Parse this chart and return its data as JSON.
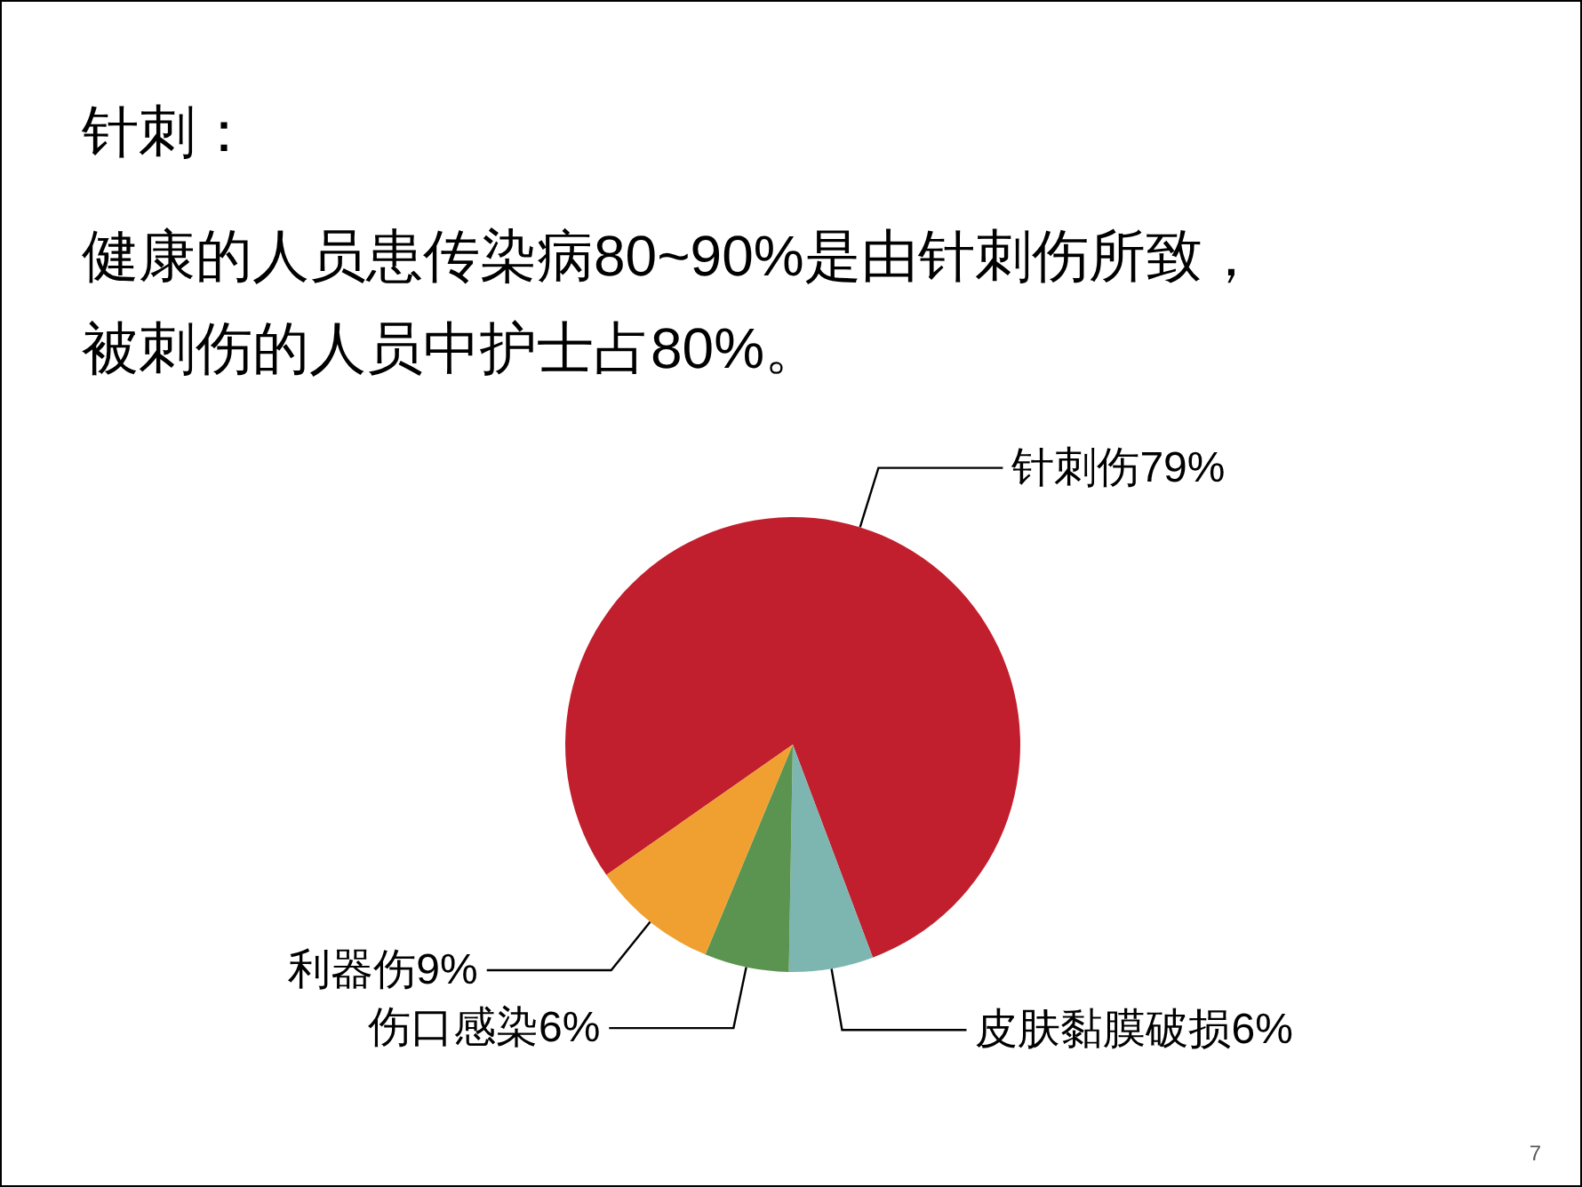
{
  "chart_data": {
    "type": "pie",
    "title": "针刺：",
    "subtitle": "健康的人员患传染病80~90%是由针刺伤所致，被刺伤的人员中护士占80%。",
    "categories": [
      "针刺伤",
      "皮肤黏膜破损",
      "伤口感染",
      "利器伤"
    ],
    "values": [
      79,
      6,
      6,
      9
    ],
    "value_labels": [
      "79%",
      "6%",
      "6%",
      "9%"
    ],
    "colors": [
      "#c21f2e",
      "#7db6b1",
      "#5a9450",
      "#f0a030"
    ],
    "annotations": [
      "7"
    ]
  }
}
